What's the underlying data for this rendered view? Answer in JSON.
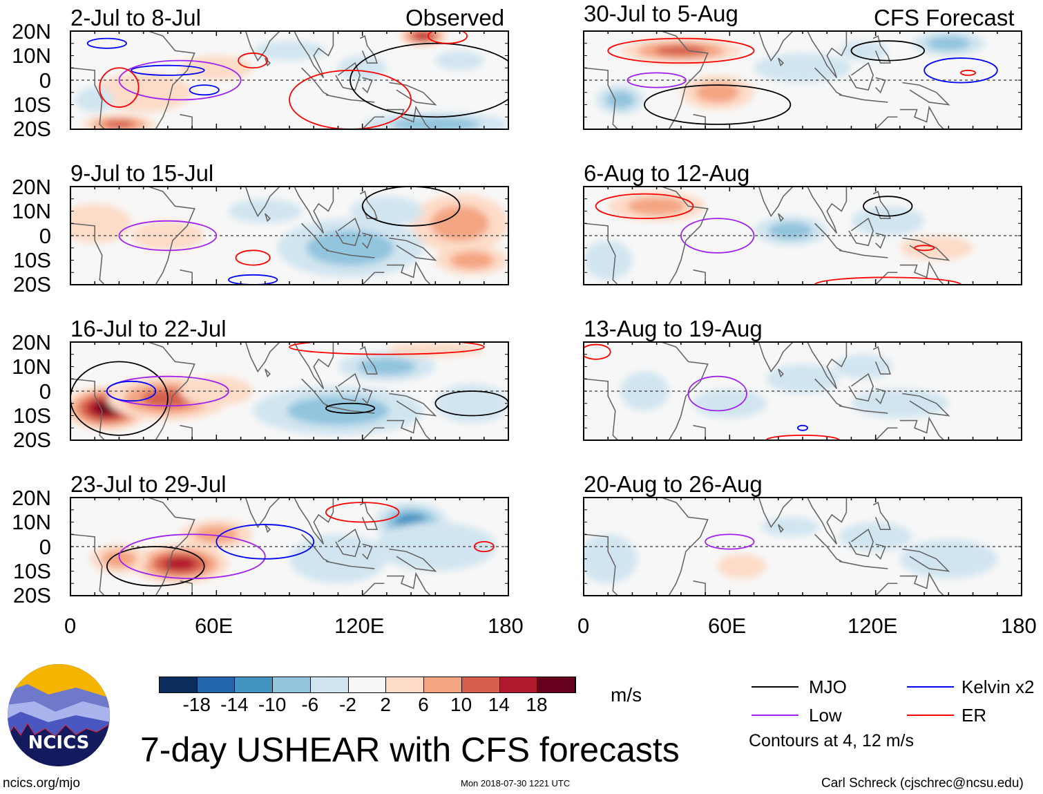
{
  "labels": {
    "observed": "Observed",
    "forecast": "CFS Forecast",
    "title": "7-day USHEAR with CFS forecasts",
    "units": "m/s",
    "contours_note": "Contours at 4, 12 m/s",
    "url": "ncics.org/mjo",
    "timestamp": "Mon 2018-07-30 1221 UTC",
    "author": "Carl Schreck (cjschrec@ncsu.edu)",
    "logo_text": "NCICS"
  },
  "legend": [
    {
      "name": "MJO",
      "color": "#000000"
    },
    {
      "name": "Kelvin x2",
      "color": "#0000ff"
    },
    {
      "name": "Low",
      "color": "#a020f0"
    },
    {
      "name": "ER",
      "color": "#ff0000"
    }
  ],
  "colorbar": {
    "colors": [
      "#0b2e5c",
      "#2166ac",
      "#4393c3",
      "#92c5de",
      "#d1e5f0",
      "#f7f7f7",
      "#fddbc7",
      "#f4a582",
      "#d6604d",
      "#b2182b",
      "#67001f"
    ],
    "ticks": [
      "-18",
      "-14",
      "-10",
      "-6",
      "-2",
      "2",
      "6",
      "10",
      "14",
      "18"
    ]
  },
  "chart_data": {
    "type": "heatmap",
    "variable": "7-day USHEAR anomaly",
    "units": "m/s",
    "lat_ticks": [
      "20N",
      "10N",
      "0",
      "10S",
      "20S"
    ],
    "lon_ticks": [
      "0",
      "60E",
      "120E",
      "180"
    ],
    "lat_range": [
      -20,
      20
    ],
    "lon_range": [
      0,
      180
    ],
    "panels": [
      {
        "title": "2-Jul to 8-Jul",
        "col": "observed",
        "blobs": [
          [
            145,
            18,
            10,
            4,
            16
          ],
          [
            20,
            -18,
            15,
            4,
            14
          ],
          [
            30,
            -5,
            20,
            8,
            6
          ],
          [
            60,
            5,
            15,
            5,
            4
          ],
          [
            150,
            -18,
            30,
            5,
            -10
          ],
          [
            160,
            8,
            10,
            4,
            -6
          ],
          [
            90,
            12,
            15,
            4,
            -4
          ],
          [
            120,
            5,
            10,
            5,
            -4
          ],
          [
            10,
            -8,
            8,
            5,
            -4
          ]
        ],
        "contours": [
          [
            "MJO",
            150,
            0,
            35,
            15
          ],
          [
            "Kelvin",
            15,
            15,
            8,
            2
          ],
          [
            "Kelvin",
            40,
            4,
            15,
            2
          ],
          [
            "Kelvin",
            55,
            -4,
            6,
            2
          ],
          [
            "Low",
            45,
            0,
            25,
            8
          ],
          [
            "ER",
            75,
            8,
            6,
            3
          ],
          [
            "ER",
            115,
            -8,
            25,
            12
          ],
          [
            "ER",
            20,
            -3,
            8,
            8
          ],
          [
            "ER",
            155,
            18,
            8,
            3
          ]
        ]
      },
      {
        "title": "9-Jul to 15-Jul",
        "col": "observed",
        "blobs": [
          [
            160,
            5,
            20,
            12,
            10
          ],
          [
            165,
            -10,
            15,
            6,
            10
          ],
          [
            115,
            -5,
            30,
            12,
            -8
          ],
          [
            130,
            10,
            15,
            6,
            -6
          ],
          [
            10,
            5,
            15,
            8,
            6
          ],
          [
            40,
            0,
            15,
            6,
            4
          ],
          [
            80,
            10,
            15,
            5,
            -4
          ]
        ],
        "contours": [
          [
            "MJO",
            140,
            12,
            20,
            8
          ],
          [
            "Low",
            40,
            0,
            20,
            6
          ],
          [
            "ER",
            75,
            -9,
            7,
            3
          ],
          [
            "Kelvin",
            75,
            -18,
            10,
            2
          ]
        ]
      },
      {
        "title": "16-Jul to 22-Jul",
        "col": "observed",
        "blobs": [
          [
            15,
            -7,
            18,
            9,
            20
          ],
          [
            40,
            -3,
            25,
            9,
            12
          ],
          [
            60,
            0,
            15,
            6,
            6
          ],
          [
            110,
            -8,
            35,
            10,
            -10
          ],
          [
            130,
            10,
            20,
            6,
            -8
          ],
          [
            150,
            17,
            20,
            3,
            6
          ],
          [
            165,
            -5,
            15,
            8,
            -4
          ]
        ],
        "contours": [
          [
            "MJO",
            20,
            -3,
            20,
            15
          ],
          [
            "MJO",
            165,
            -5,
            15,
            5
          ],
          [
            "MJO",
            115,
            -7,
            10,
            2
          ],
          [
            "Low",
            40,
            0,
            25,
            6
          ],
          [
            "Kelvin",
            25,
            0,
            10,
            4
          ],
          [
            "ER",
            130,
            18,
            40,
            3
          ]
        ]
      },
      {
        "title": "23-Jul to 29-Jul",
        "col": "observed",
        "blobs": [
          [
            45,
            -7,
            20,
            8,
            18
          ],
          [
            20,
            -5,
            12,
            6,
            10
          ],
          [
            140,
            10,
            15,
            8,
            -12
          ],
          [
            150,
            0,
            25,
            10,
            -4
          ],
          [
            110,
            -5,
            20,
            10,
            -4
          ],
          [
            60,
            5,
            15,
            6,
            8
          ]
        ],
        "contours": [
          [
            "MJO",
            35,
            -8,
            20,
            8
          ],
          [
            "Low",
            50,
            -4,
            30,
            9
          ],
          [
            "Kelvin",
            80,
            2,
            20,
            7
          ],
          [
            "ER",
            120,
            14,
            15,
            4
          ],
          [
            "ER",
            170,
            0,
            4,
            2
          ]
        ]
      },
      {
        "title": "30-Jul to 5-Aug",
        "col": "forecast",
        "blobs": [
          [
            40,
            12,
            25,
            5,
            12
          ],
          [
            55,
            -5,
            15,
            7,
            10
          ],
          [
            15,
            -8,
            10,
            6,
            -8
          ],
          [
            150,
            15,
            15,
            5,
            -10
          ],
          [
            90,
            5,
            20,
            6,
            -4
          ],
          [
            115,
            12,
            10,
            4,
            -4
          ]
        ],
        "contours": [
          [
            "MJO",
            55,
            -10,
            30,
            8
          ],
          [
            "MJO",
            125,
            12,
            15,
            4
          ],
          [
            "Kelvin",
            155,
            4,
            15,
            5
          ],
          [
            "Low",
            30,
            0,
            12,
            3
          ],
          [
            "ER",
            40,
            12,
            30,
            5
          ],
          [
            "ER",
            158,
            3,
            3,
            1
          ]
        ]
      },
      {
        "title": "6-Aug to 12-Aug",
        "col": "forecast",
        "blobs": [
          [
            30,
            12,
            20,
            6,
            10
          ],
          [
            85,
            2,
            15,
            6,
            -8
          ],
          [
            125,
            6,
            15,
            6,
            -6
          ],
          [
            145,
            -5,
            15,
            5,
            6
          ],
          [
            10,
            -10,
            10,
            8,
            -4
          ]
        ],
        "contours": [
          [
            "MJO",
            125,
            12,
            10,
            4
          ],
          [
            "Low",
            55,
            0,
            15,
            7
          ],
          [
            "ER",
            25,
            12,
            20,
            5
          ],
          [
            "ER",
            140,
            -5,
            4,
            1
          ],
          [
            "ER",
            125,
            -20,
            30,
            3
          ]
        ]
      },
      {
        "title": "13-Aug to 19-Aug",
        "col": "forecast",
        "blobs": [
          [
            115,
            10,
            12,
            5,
            -6
          ],
          [
            90,
            5,
            15,
            6,
            -4
          ],
          [
            130,
            -5,
            20,
            6,
            -4
          ],
          [
            60,
            -5,
            15,
            6,
            -4
          ],
          [
            25,
            0,
            10,
            8,
            -3
          ]
        ],
        "contours": [
          [
            "Low",
            55,
            -1,
            12,
            7
          ],
          [
            "ER",
            5,
            16,
            6,
            3
          ],
          [
            "Kelvin",
            90,
            -15,
            2,
            1
          ],
          [
            "ER",
            90,
            -20,
            15,
            2
          ]
        ]
      },
      {
        "title": "20-Aug to 26-Aug",
        "col": "forecast",
        "blobs": [
          [
            10,
            -5,
            12,
            10,
            -5
          ],
          [
            85,
            8,
            12,
            4,
            -4
          ],
          [
            120,
            4,
            15,
            6,
            -4
          ],
          [
            65,
            -8,
            10,
            5,
            3
          ],
          [
            150,
            -5,
            20,
            8,
            -3
          ]
        ],
        "contours": [
          [
            "Low",
            60,
            2,
            10,
            3
          ]
        ]
      }
    ]
  }
}
